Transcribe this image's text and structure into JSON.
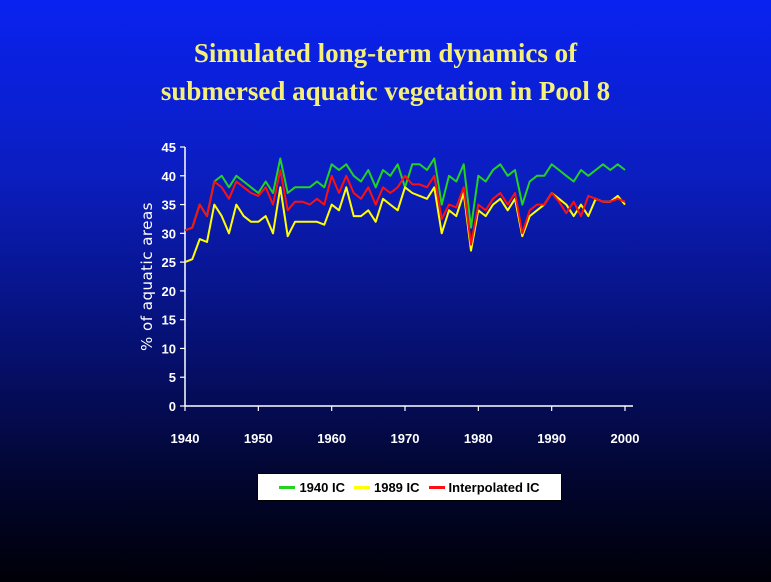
{
  "slide": {
    "title_line1": "Simulated long-term dynamics of",
    "title_line2": "submersed aquatic vegetation in Pool 8"
  },
  "colors": {
    "title": "#f5f07a",
    "series_1940": "#22d322",
    "series_1989": "#ffff00",
    "series_interpolated": "#ff1010"
  },
  "chart_data": {
    "type": "line",
    "ylabel": "% of aquatic areas",
    "xlim": [
      1940,
      2000
    ],
    "ylim": [
      0,
      45
    ],
    "xticks": [
      "1940",
      "1950",
      "1960",
      "1970",
      "1980",
      "1990",
      "2000"
    ],
    "yticks": [
      "0",
      "5",
      "10",
      "15",
      "20",
      "25",
      "30",
      "35",
      "40",
      "45"
    ],
    "grid": false,
    "legend_position": "bottom",
    "series": [
      {
        "name": "1940 IC",
        "color": "#22d322",
        "x": [
          1940,
          1941,
          1942,
          1943,
          1944,
          1945,
          1946,
          1947,
          1948,
          1949,
          1950,
          1951,
          1952,
          1953,
          1954,
          1955,
          1956,
          1957,
          1958,
          1959,
          1960,
          1961,
          1962,
          1963,
          1964,
          1965,
          1966,
          1967,
          1968,
          1969,
          1970,
          1971,
          1972,
          1973,
          1974,
          1975,
          1976,
          1977,
          1978,
          1979,
          1980,
          1981,
          1982,
          1983,
          1984,
          1985,
          1986,
          1987,
          1988,
          1989,
          1990,
          1991,
          1992,
          1993,
          1994,
          1995,
          1996,
          1997,
          1998,
          1999,
          2000
        ],
        "values": [
          30.5,
          31,
          35,
          33,
          39,
          40,
          38,
          40,
          39,
          38,
          37,
          39,
          37,
          43,
          37,
          38,
          38,
          38,
          39,
          38,
          42,
          41,
          42,
          40,
          39,
          41,
          38,
          41,
          40,
          42,
          38,
          42,
          42,
          41,
          43,
          35,
          40,
          39,
          42,
          31,
          40,
          39,
          41,
          42,
          40,
          41,
          35,
          39,
          40,
          40,
          42,
          41,
          40,
          39,
          41,
          40,
          41,
          42,
          41,
          42,
          41
        ]
      },
      {
        "name": "1989 IC",
        "color": "#ffff00",
        "x": [
          1940,
          1941,
          1942,
          1943,
          1944,
          1945,
          1946,
          1947,
          1948,
          1949,
          1950,
          1951,
          1952,
          1953,
          1954,
          1955,
          1956,
          1957,
          1958,
          1959,
          1960,
          1961,
          1962,
          1963,
          1964,
          1965,
          1966,
          1967,
          1968,
          1969,
          1970,
          1971,
          1972,
          1973,
          1974,
          1975,
          1976,
          1977,
          1978,
          1979,
          1980,
          1981,
          1982,
          1983,
          1984,
          1985,
          1986,
          1987,
          1988,
          1989,
          1990,
          1991,
          1992,
          1993,
          1994,
          1995,
          1996,
          1997,
          1998,
          1999,
          2000
        ],
        "values": [
          25,
          25.5,
          29,
          28.5,
          35,
          33,
          30,
          35,
          33,
          32,
          32,
          33,
          30,
          38,
          29.5,
          32,
          32,
          32,
          32,
          31.5,
          35,
          34,
          38,
          33,
          33,
          34,
          32,
          36,
          35,
          34,
          38,
          37,
          36.5,
          36,
          38,
          30,
          34,
          33,
          37,
          27,
          34,
          33,
          35,
          36,
          34,
          36,
          29.5,
          33,
          34,
          35,
          37,
          36,
          35,
          33,
          35,
          33,
          36,
          35.5,
          35.5,
          36.5,
          35
        ]
      },
      {
        "name": "Interpolated IC",
        "color": "#ff1010",
        "x": [
          1940,
          1941,
          1942,
          1943,
          1944,
          1945,
          1946,
          1947,
          1948,
          1949,
          1950,
          1951,
          1952,
          1953,
          1954,
          1955,
          1956,
          1957,
          1958,
          1959,
          1960,
          1961,
          1962,
          1963,
          1964,
          1965,
          1966,
          1967,
          1968,
          1969,
          1970,
          1971,
          1972,
          1973,
          1974,
          1975,
          1976,
          1977,
          1978,
          1979,
          1980,
          1981,
          1982,
          1983,
          1984,
          1985,
          1986,
          1987,
          1988,
          1989,
          1990,
          1991,
          1992,
          1993,
          1994,
          1995,
          1996,
          1997,
          1998,
          1999,
          2000
        ],
        "values": [
          30.5,
          31,
          35,
          33,
          39,
          38,
          36,
          39,
          38,
          37,
          36.5,
          38,
          35,
          41,
          34,
          35.5,
          35.5,
          35,
          36,
          35,
          40,
          37,
          40,
          37,
          36,
          38,
          35,
          38,
          37,
          38,
          40,
          38.5,
          38.5,
          38,
          40,
          32.5,
          35,
          34.5,
          38,
          28,
          35,
          34,
          36,
          37,
          35,
          37,
          30,
          34,
          35,
          35,
          37,
          35.5,
          33.5,
          35.5,
          33,
          36.5,
          36,
          35.5,
          35.5,
          36,
          35.5
        ]
      }
    ]
  }
}
